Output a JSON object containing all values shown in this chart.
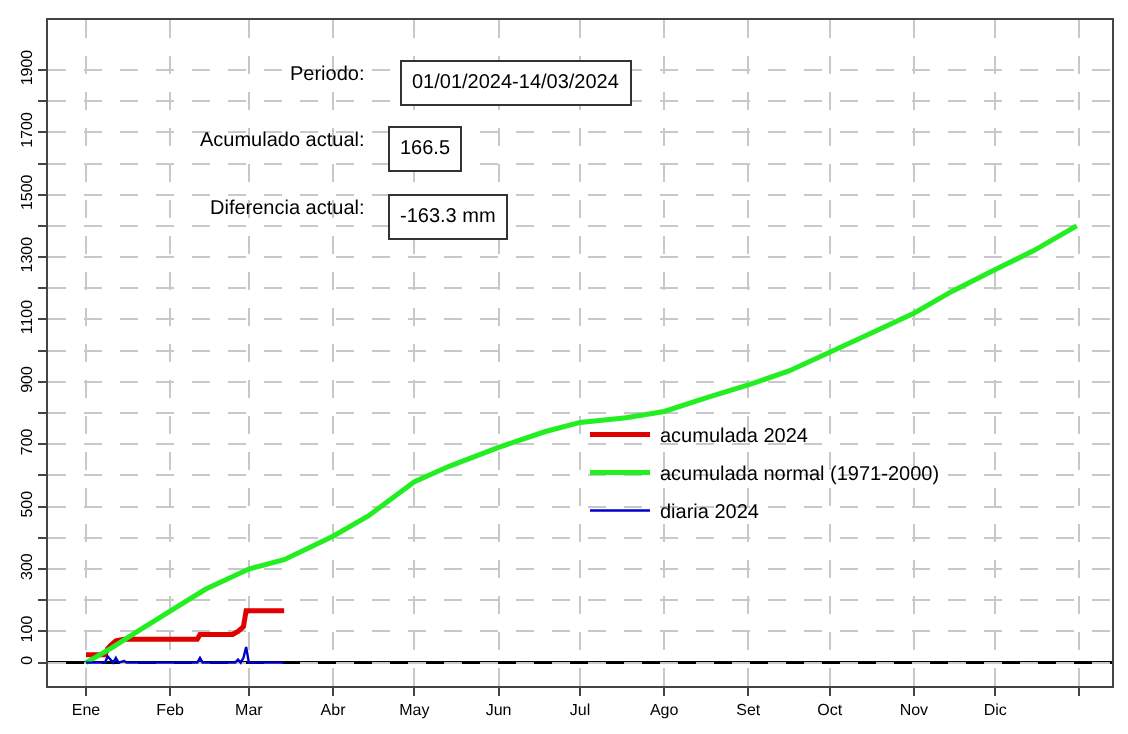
{
  "chart_data": {
    "type": "line",
    "xlim": [
      "2023-12-18",
      "2025-01-13"
    ],
    "xticks": [
      {
        "value": "2024-01-01",
        "label": "Ene"
      },
      {
        "value": "2024-02-01",
        "label": "Feb"
      },
      {
        "value": "2024-03-01",
        "label": "Mar"
      },
      {
        "value": "2024-04-01",
        "label": "Abr"
      },
      {
        "value": "2024-05-01",
        "label": "May"
      },
      {
        "value": "2024-06-01",
        "label": "Jun"
      },
      {
        "value": "2024-07-01",
        "label": "Jul"
      },
      {
        "value": "2024-08-01",
        "label": "Ago"
      },
      {
        "value": "2024-09-01",
        "label": "Set"
      },
      {
        "value": "2024-10-01",
        "label": "Oct"
      },
      {
        "value": "2024-11-01",
        "label": "Nov"
      },
      {
        "value": "2024-12-01",
        "label": "Dic"
      },
      {
        "value": "2025-01-01",
        "label": null
      }
    ],
    "ylim": [
      -75,
      2060
    ],
    "yticks": [
      0,
      100,
      {
        "value": 200,
        "label": null
      },
      300,
      {
        "value": 400,
        "label": null
      },
      500,
      {
        "value": 600,
        "label": null
      },
      700,
      {
        "value": 800,
        "label": null
      },
      900,
      {
        "value": 1000,
        "label": null
      },
      1100,
      {
        "value": 1200,
        "label": null
      },
      1300,
      {
        "value": 1400,
        "label": null
      },
      1500,
      {
        "value": 1600,
        "label": null
      },
      1700,
      {
        "value": 1800,
        "label": null
      },
      1900
    ],
    "grid": true,
    "legend": "bottom center",
    "line_style": "solid",
    "marker": "none",
    "ref_lines": [
      {
        "axis": "y",
        "value": 0,
        "color": "#000000"
      }
    ],
    "annotations": [
      "Periodo:",
      "01/01/2024-14/03/2024",
      "Acumulado actual:",
      "166.5",
      "Diferencia actual:",
      "-163.3 mm"
    ],
    "series": [
      {
        "name": "acumulada 2024",
        "color": "#e00000",
        "x": [
          "2024-01-01",
          "2024-01-08",
          "2024-01-09",
          "2024-01-10",
          "2024-01-12",
          "2024-01-15",
          "2024-02-11",
          "2024-02-12",
          "2024-02-24",
          "2024-02-26",
          "2024-02-28",
          "2024-02-29",
          "2024-03-14"
        ],
        "values": [
          25,
          25,
          45,
          55,
          70,
          75,
          75,
          90,
          90,
          100,
          115,
          166.5,
          166.5
        ]
      },
      {
        "name": "acumulada normal (1971-2000)",
        "color": "#22ee22",
        "x": [
          "2024-01-01",
          "2024-01-10",
          "2024-01-20",
          "2024-02-01",
          "2024-02-14",
          "2024-03-01",
          "2024-03-14",
          "2024-04-01",
          "2024-04-14",
          "2024-05-01",
          "2024-05-14",
          "2024-06-01",
          "2024-06-18",
          "2024-07-01",
          "2024-07-18",
          "2024-08-01",
          "2024-08-17",
          "2024-09-01",
          "2024-09-16",
          "2024-10-01",
          "2024-10-16",
          "2024-11-01",
          "2024-11-15",
          "2024-12-01",
          "2024-12-15",
          "2024-12-31"
        ],
        "values": [
          0,
          45,
          100,
          165,
          235,
          300,
          330,
          405,
          470,
          580,
          630,
          690,
          740,
          770,
          785,
          805,
          850,
          890,
          935,
          995,
          1055,
          1120,
          1190,
          1260,
          1320,
          1400
        ]
      },
      {
        "name": "diaria 2024",
        "color": "#0000cc",
        "x": [
          "2024-01-01",
          "2024-01-08",
          "2024-01-09",
          "2024-01-10",
          "2024-01-11",
          "2024-01-12",
          "2024-01-13",
          "2024-01-15",
          "2024-01-16",
          "2024-02-11",
          "2024-02-12",
          "2024-02-13",
          "2024-02-25",
          "2024-02-26",
          "2024-02-27",
          "2024-02-28",
          "2024-02-29",
          "2024-03-01",
          "2024-03-14"
        ],
        "values": [
          0,
          0,
          20,
          10,
          0,
          15,
          0,
          5,
          0,
          0,
          15,
          0,
          0,
          10,
          0,
          15,
          50,
          0,
          0
        ]
      }
    ]
  }
}
